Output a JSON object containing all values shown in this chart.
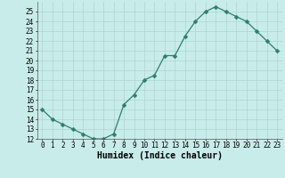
{
  "x": [
    0,
    1,
    2,
    3,
    4,
    5,
    6,
    7,
    8,
    9,
    10,
    11,
    12,
    13,
    14,
    15,
    16,
    17,
    18,
    19,
    20,
    21,
    22,
    23
  ],
  "y": [
    15,
    14,
    13.5,
    13,
    12.5,
    12,
    12,
    12.5,
    15.5,
    16.5,
    18,
    18.5,
    20.5,
    20.5,
    22.5,
    24,
    25,
    25.5,
    25,
    24.5,
    24,
    23,
    22,
    21
  ],
  "xlabel": "Humidex (Indice chaleur)",
  "ylim": [
    12,
    26
  ],
  "xlim": [
    -0.5,
    23.5
  ],
  "yticks": [
    12,
    13,
    14,
    15,
    16,
    17,
    18,
    19,
    20,
    21,
    22,
    23,
    24,
    25
  ],
  "xticks": [
    0,
    1,
    2,
    3,
    4,
    5,
    6,
    7,
    8,
    9,
    10,
    11,
    12,
    13,
    14,
    15,
    16,
    17,
    18,
    19,
    20,
    21,
    22,
    23
  ],
  "line_color": "#2e7d6e",
  "marker_color": "#2e7d6e",
  "bg_color": "#c8ecea",
  "grid_color": "#aed4d0",
  "tick_fontsize": 5.5,
  "xlabel_fontsize": 7,
  "marker_size": 2.5
}
